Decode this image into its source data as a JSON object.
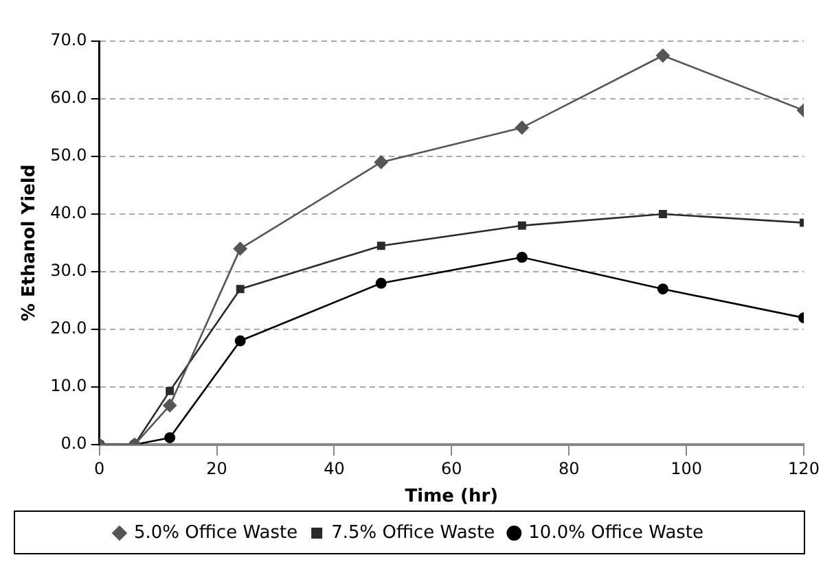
{
  "chart_data": {
    "type": "line",
    "xlabel": "Time (hr)",
    "ylabel": "% Ethanol Yield",
    "x": [
      0,
      6,
      12,
      24,
      48,
      72,
      96,
      120
    ],
    "xlim": [
      0,
      120
    ],
    "xticks": [
      0,
      20,
      40,
      60,
      80,
      100,
      120
    ],
    "ylim": [
      0,
      70
    ],
    "yticks": [
      {
        "value": 0,
        "label": "0.0"
      },
      {
        "value": 10,
        "label": "10.0"
      },
      {
        "value": 20,
        "label": "20.0"
      },
      {
        "value": 30,
        "label": "30.0"
      },
      {
        "value": 40,
        "label": "40.0"
      },
      {
        "value": 50,
        "label": "50.0"
      },
      {
        "value": 60,
        "label": "60.0"
      },
      {
        "value": 70,
        "label": "70.0"
      }
    ],
    "grid": "y",
    "legend": "bottom",
    "line_style": "solid",
    "series": [
      {
        "name": "5.0% Office Waste",
        "color": "#555555",
        "marker": "diamond",
        "values": [
          0,
          0,
          6.8,
          34,
          49,
          55,
          67.5,
          58
        ]
      },
      {
        "name": "7.5% Office Waste",
        "color": "#2a2a2a",
        "marker": "square",
        "values": [
          0,
          0,
          9.3,
          27,
          34.5,
          38,
          40,
          38.5
        ]
      },
      {
        "name": "10.0% Office Waste",
        "color": "#000000",
        "marker": "circle",
        "values": [
          0,
          0,
          1.2,
          18,
          28,
          32.5,
          27,
          22
        ]
      }
    ]
  }
}
